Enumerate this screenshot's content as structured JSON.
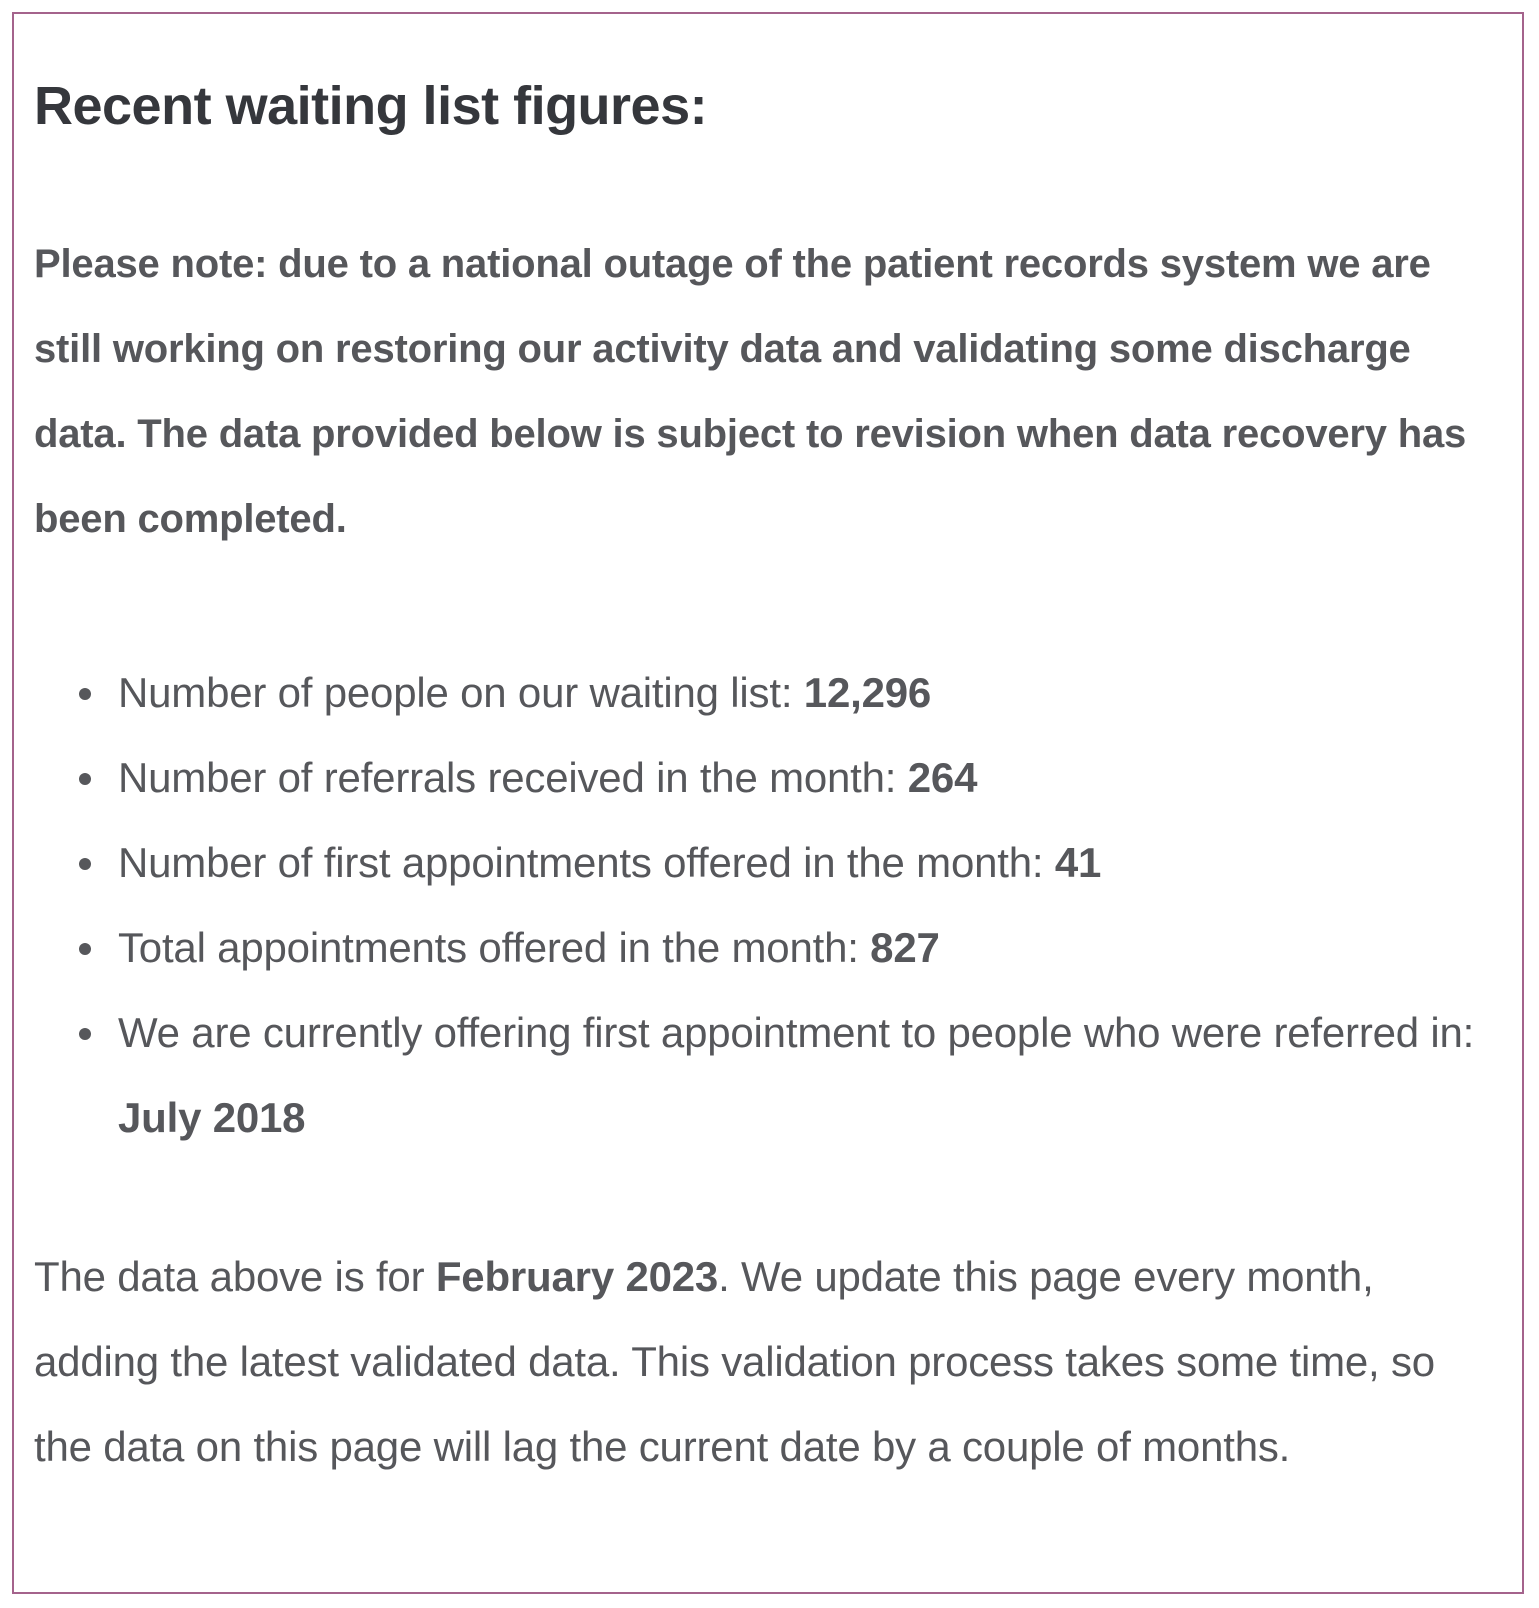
{
  "heading": "Recent waiting list figures:",
  "note": "Please note: due to a national outage of the patient records system we are still working on restoring our activity data and validating some discharge data. The data provided below is subject to revision when data recovery has been completed.",
  "stats": [
    {
      "label": "Number of people on our waiting list: ",
      "value": "12,296"
    },
    {
      "label": "Number of referrals received in the month: ",
      "value": "264"
    },
    {
      "label": "Number of first appointments offered in the month: ",
      "value": "41"
    },
    {
      "label": "Total appointments offered in the month: ",
      "value": "827"
    },
    {
      "label": "We are currently offering first appointment to people who were referred in: ",
      "value": "July 2018"
    }
  ],
  "footer": {
    "prefix": "The data above is for ",
    "period": "February 2023",
    "suffix": ". We update this page every month, adding the latest validated data. This validation process takes some time, so the data on this page will lag the current date by a couple of months."
  },
  "colors": {
    "border": "#a4638c",
    "heading": "#35373c",
    "text": "#56575b"
  }
}
